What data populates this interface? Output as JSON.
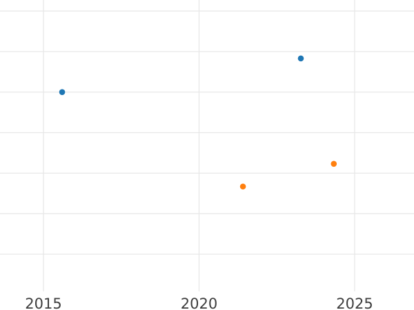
{
  "chart_data": {
    "type": "scatter",
    "title": "",
    "xlabel": "",
    "ylabel": "",
    "legend": "none",
    "grid": true,
    "x_axis": {
      "tick_labels": [
        "2015",
        "2020",
        "2025"
      ],
      "tick_values": [
        2015,
        2020,
        2025
      ],
      "visible_range": [
        2013.6,
        2026.9
      ]
    },
    "y_axis": {
      "tick_labels_visible": false,
      "visible_gridline_count": 7,
      "units_note": "y values expressed in gridline steps above the lowest visible horizontal gridline (axis labels not shown in image)"
    },
    "series": [
      {
        "name": "blue-series",
        "marker": "circle",
        "color": "#1f77b4",
        "points": [
          {
            "x": 2015.6,
            "y": 4.0
          },
          {
            "x": 2023.27,
            "y": 4.83
          }
        ]
      },
      {
        "name": "orange-series",
        "marker": "circle",
        "color": "#ff7f0e",
        "points": [
          {
            "x": 2021.41,
            "y": 1.67
          },
          {
            "x": 2024.33,
            "y": 2.23
          }
        ]
      }
    ]
  },
  "colors": {
    "background": "#ffffff",
    "gridline": "#e7e7e7",
    "tick_text": "#3d3d3d"
  }
}
